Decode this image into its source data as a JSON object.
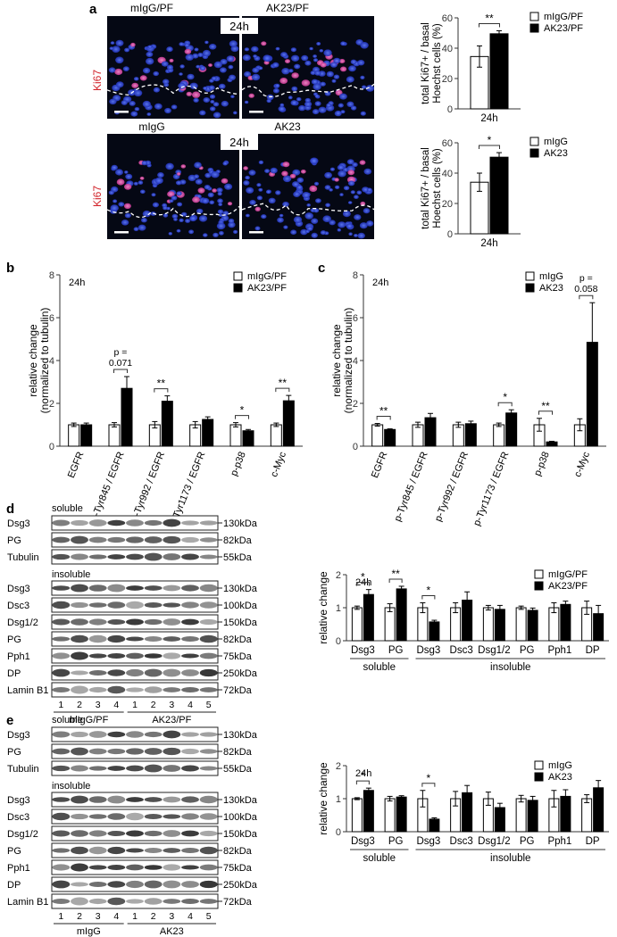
{
  "panel_labels": [
    "a",
    "b",
    "c",
    "d",
    "e"
  ],
  "panel_a": {
    "top_images": {
      "left_label": "mIgG/PF",
      "right_label": "AK23/PF",
      "time_label": "24h",
      "stain_label": "Ki67"
    },
    "bottom_images": {
      "left_label": "mIgG",
      "right_label": "AK23",
      "time_label": "24h",
      "stain_label": "Ki67"
    }
  },
  "blot_d": {
    "soluble_header": "soluble",
    "insoluble_header": "insoluble",
    "soluble_rows": [
      {
        "label": "Dsg3",
        "size": "130kDa"
      },
      {
        "label": "PG",
        "size": "82kDa"
      },
      {
        "label": "Tubulin",
        "size": "55kDa"
      }
    ],
    "insoluble_rows": [
      {
        "label": "Dsg3",
        "size": "130kDa"
      },
      {
        "label": "Dsc3",
        "size": "100kDa"
      },
      {
        "label": "Dsg1/2",
        "size": "150kDa"
      },
      {
        "label": "PG",
        "size": "82kDa"
      },
      {
        "label": "Pph1",
        "size": "75kDa"
      },
      {
        "label": "DP",
        "size": "250kDa"
      },
      {
        "label": "Lamin B1",
        "size": "72kDa"
      }
    ],
    "lanes": [
      "1",
      "2",
      "3",
      "4",
      "1",
      "2",
      "3",
      "4",
      "5"
    ],
    "groups": [
      "mIgG/PF",
      "AK23/PF"
    ]
  },
  "blot_e": {
    "soluble_header": "soluble",
    "insoluble_header": "insoluble",
    "soluble_rows": [
      {
        "label": "Dsg3",
        "size": "130kDa"
      },
      {
        "label": "PG",
        "size": "82kDa"
      },
      {
        "label": "Tubulin",
        "size": "55kDa"
      }
    ],
    "insoluble_rows": [
      {
        "label": "Dsg3",
        "size": "130kDa"
      },
      {
        "label": "Dsc3",
        "size": "100kDa"
      },
      {
        "label": "Dsg1/2",
        "size": "150kDa"
      },
      {
        "label": "PG",
        "size": "82kDa"
      },
      {
        "label": "Pph1",
        "size": "75kDa"
      },
      {
        "label": "DP",
        "size": "250kDa"
      },
      {
        "label": "Lamin B1",
        "size": "72kDa"
      }
    ],
    "lanes": [
      "1",
      "2",
      "3",
      "4",
      "1",
      "2",
      "3",
      "4",
      "5"
    ],
    "groups": [
      "mIgG",
      "AK23"
    ]
  },
  "chart_data": [
    {
      "id": "a_top",
      "type": "bar",
      "categories": [
        "24h"
      ],
      "series": [
        {
          "name": "mIgG/PF",
          "values": [
            34.5
          ],
          "errors": [
            7
          ],
          "color": "#ffffff"
        },
        {
          "name": "AK23/PF",
          "values": [
            49.5
          ],
          "errors": [
            2
          ],
          "color": "#000000"
        }
      ],
      "ylabel": "total Ki67+ / basal Hoechst cells (%)",
      "ylim": [
        0,
        60
      ],
      "yticks": [
        0,
        20,
        40,
        60
      ],
      "annotations": [
        "**"
      ],
      "legend": "top-right"
    },
    {
      "id": "a_bottom",
      "type": "bar",
      "categories": [
        "24h"
      ],
      "series": [
        {
          "name": "mIgG",
          "values": [
            34
          ],
          "errors": [
            6
          ],
          "color": "#ffffff"
        },
        {
          "name": "AK23",
          "values": [
            50.5
          ],
          "errors": [
            3
          ],
          "color": "#000000"
        }
      ],
      "ylabel": "total Ki67+ / basal Hoechst cells (%)",
      "ylim": [
        0,
        60
      ],
      "yticks": [
        0,
        20,
        40,
        60
      ],
      "annotations": [
        "*"
      ],
      "legend": "top-right"
    },
    {
      "id": "b",
      "type": "bar",
      "time_label": "24h",
      "categories": [
        "EGFR",
        "p-Tyr845 / EGFR",
        "p-Tyr992 / EGFR",
        "p-Tyr1173 / EGFR",
        "p-p38",
        "c-Myc"
      ],
      "series": [
        {
          "name": "mIgG/PF",
          "values": [
            1.0,
            1.0,
            1.0,
            1.0,
            1.0,
            1.0
          ],
          "errors": [
            0.08,
            0.1,
            0.15,
            0.15,
            0.1,
            0.08
          ],
          "color": "#ffffff"
        },
        {
          "name": "AK23/PF",
          "values": [
            1.0,
            2.7,
            2.1,
            1.25,
            0.72,
            2.12
          ],
          "errors": [
            0.08,
            0.55,
            0.25,
            0.12,
            0.06,
            0.25
          ],
          "color": "#000000"
        }
      ],
      "ylabel": "relative change (normalized to tubulin)",
      "ylim": [
        0,
        8
      ],
      "yticks": [
        0,
        2,
        4,
        6,
        8
      ],
      "annotations": [
        {
          "category": "p-Tyr845 / EGFR",
          "text": "p = 0.071"
        },
        {
          "category": "p-Tyr992 / EGFR",
          "text": "**"
        },
        {
          "category": "p-p38",
          "text": "*"
        },
        {
          "category": "c-Myc",
          "text": "**"
        }
      ],
      "legend": "top-right"
    },
    {
      "id": "c",
      "type": "bar",
      "time_label": "24h",
      "categories": [
        "EGFR",
        "p-Tyr845 / EGFR",
        "p-Tyr992 / EGFR",
        "p-Tyr1173 / EGFR",
        "p-p38",
        "c-Myc"
      ],
      "series": [
        {
          "name": "mIgG",
          "values": [
            1.0,
            1.0,
            1.0,
            1.0,
            1.0,
            1.0
          ],
          "errors": [
            0.06,
            0.12,
            0.12,
            0.08,
            0.3,
            0.28
          ],
          "color": "#ffffff"
        },
        {
          "name": "AK23",
          "values": [
            0.78,
            1.33,
            1.05,
            1.55,
            0.2,
            4.85
          ],
          "errors": [
            0.03,
            0.2,
            0.12,
            0.15,
            0.03,
            1.85
          ],
          "color": "#000000"
        }
      ],
      "ylabel": "relative change (normalized to tubulin)",
      "ylim": [
        0,
        8
      ],
      "yticks": [
        0,
        2,
        4,
        6,
        8
      ],
      "annotations": [
        {
          "category": "EGFR",
          "text": "**"
        },
        {
          "category": "p-Tyr1173 / EGFR",
          "text": "*"
        },
        {
          "category": "p-p38",
          "text": "**"
        },
        {
          "category": "c-Myc",
          "text": "p = 0.058"
        }
      ],
      "legend": "top-right"
    },
    {
      "id": "d",
      "type": "bar",
      "time_label": "24h",
      "categories": [
        "Dsg3",
        "PG",
        "Dsg3",
        "Dsc3",
        "Dsg1/2",
        "PG",
        "Pph1",
        "DP"
      ],
      "groups": [
        {
          "label": "soluble",
          "categories": 2
        },
        {
          "label": "insoluble",
          "categories": 6
        }
      ],
      "series": [
        {
          "name": "mIgG/PF",
          "values": [
            1.0,
            1.0,
            1.0,
            1.0,
            1.0,
            1.0,
            1.0,
            1.0
          ],
          "errors": [
            0.05,
            0.12,
            0.15,
            0.15,
            0.07,
            0.05,
            0.15,
            0.2
          ],
          "color": "#ffffff"
        },
        {
          "name": "AK23/PF",
          "values": [
            1.4,
            1.57,
            0.57,
            1.23,
            0.95,
            0.92,
            1.1,
            0.82
          ],
          "errors": [
            0.15,
            0.08,
            0.05,
            0.25,
            0.12,
            0.07,
            0.1,
            0.25
          ],
          "color": "#000000"
        }
      ],
      "ylabel": "relative change",
      "ylim": [
        0,
        2
      ],
      "yticks": [
        0,
        1,
        2
      ],
      "annotations": [
        {
          "category_index": 0,
          "text": "*"
        },
        {
          "category_index": 1,
          "text": "**"
        },
        {
          "category_index": 2,
          "text": "*"
        }
      ],
      "legend": "top-right"
    },
    {
      "id": "e",
      "type": "bar",
      "time_label": "24h",
      "categories": [
        "Dsg3",
        "PG",
        "Dsg3",
        "Dsc3",
        "Dsg1/2",
        "PG",
        "Pph1",
        "DP"
      ],
      "groups": [
        {
          "label": "soluble",
          "categories": 2
        },
        {
          "label": "insoluble",
          "categories": 6
        }
      ],
      "series": [
        {
          "name": "mIgG",
          "values": [
            1.0,
            1.0,
            1.0,
            1.0,
            1.0,
            1.0,
            1.0,
            1.0
          ],
          "errors": [
            0.03,
            0.07,
            0.25,
            0.22,
            0.2,
            0.1,
            0.25,
            0.12
          ],
          "color": "#ffffff"
        },
        {
          "name": "AK23",
          "values": [
            1.25,
            1.05,
            0.38,
            1.18,
            0.73,
            0.95,
            1.07,
            1.33
          ],
          "errors": [
            0.07,
            0.04,
            0.04,
            0.22,
            0.13,
            0.12,
            0.2,
            0.22
          ],
          "color": "#000000"
        }
      ],
      "ylabel": "relative change",
      "ylim": [
        0,
        2
      ],
      "yticks": [
        0,
        1,
        2
      ],
      "annotations": [
        {
          "category_index": 0,
          "text": "*"
        },
        {
          "category_index": 2,
          "text": "*"
        }
      ],
      "legend": "top-right"
    }
  ]
}
